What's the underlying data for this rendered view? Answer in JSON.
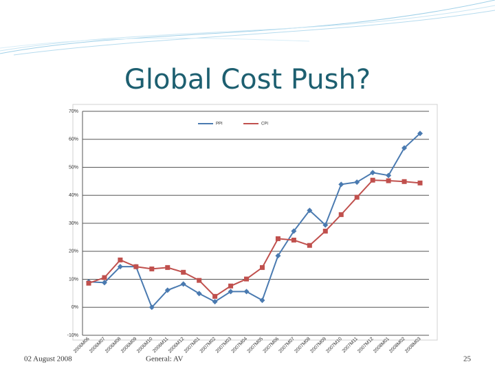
{
  "title": "Global Cost Push?",
  "footer": {
    "date": "02 August 2008",
    "classification": "General: AV",
    "page": "25"
  },
  "chart_data": {
    "type": "line",
    "categories": [
      "2006M06",
      "2006M07",
      "2006M08",
      "2006M09",
      "2006M10",
      "2006M11",
      "2006M12",
      "2007M01",
      "2007M02",
      "2007M03",
      "2007M04",
      "2007M05",
      "2007M06",
      "2007M07",
      "2007M08",
      "2007M09",
      "2007M10",
      "2007M11",
      "2007M12",
      "2008M01",
      "2008M02",
      "2008M03"
    ],
    "series": [
      {
        "name": "PPI",
        "color": "#4a7ab0",
        "marker": "diamond",
        "values": [
          9.1,
          8.8,
          14.5,
          14.5,
          0,
          6.1,
          8.3,
          4.9,
          2.0,
          5.6,
          5.6,
          2.5,
          18.4,
          27.2,
          34.6,
          29.4,
          43.9,
          44.7,
          48.1,
          47.1,
          56.9,
          62.1
        ]
      },
      {
        "name": "CPI",
        "color": "#c0504d",
        "marker": "square",
        "values": [
          8.6,
          10.6,
          16.9,
          14.5,
          13.7,
          14.2,
          12.5,
          9.6,
          3.9,
          7.6,
          10.1,
          14.2,
          24.5,
          24.0,
          22.1,
          27.2,
          33.1,
          39.3,
          45.4,
          45.2,
          44.9,
          44.4
        ]
      }
    ],
    "ylim": [
      -10,
      70
    ],
    "yticks": [
      {
        "value": -10,
        "label": "-10%"
      },
      {
        "value": 0,
        "label": "0%"
      },
      {
        "value": 10,
        "label": "10%"
      },
      {
        "value": 20,
        "label": "20%"
      },
      {
        "value": 30,
        "label": "30%"
      },
      {
        "value": 40,
        "label": "40%"
      },
      {
        "value": 50,
        "label": "50%"
      },
      {
        "value": 60,
        "label": "60%"
      },
      {
        "value": 70,
        "label": "70%"
      }
    ],
    "grid": true,
    "legend": "top"
  }
}
